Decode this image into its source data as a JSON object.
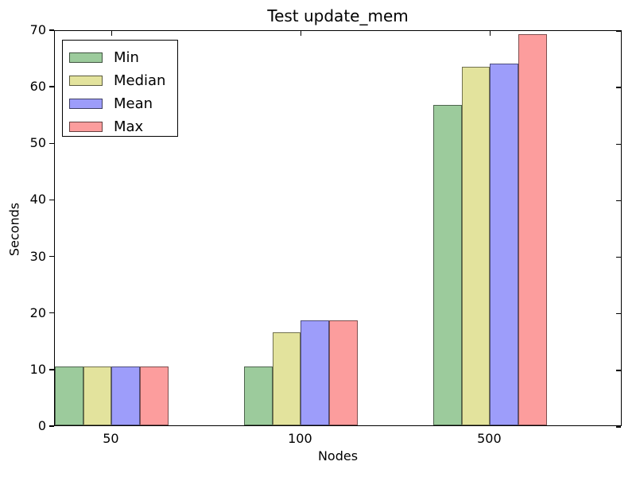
{
  "chart_data": {
    "type": "bar",
    "title": "Test update_mem",
    "xlabel": "Nodes",
    "ylabel": "Seconds",
    "categories": [
      "50",
      "100",
      "500"
    ],
    "series": [
      {
        "name": "Min",
        "color": "#9ccb9c",
        "values": [
          10.4,
          10.4,
          56.7
        ]
      },
      {
        "name": "Median",
        "color": "#e3e39d",
        "values": [
          10.4,
          16.4,
          63.4
        ]
      },
      {
        "name": "Mean",
        "color": "#9d9dfa",
        "values": [
          10.4,
          18.5,
          64.0
        ]
      },
      {
        "name": "Max",
        "color": "#fc9d9d",
        "values": [
          10.4,
          18.5,
          69.1
        ]
      }
    ],
    "ylim": [
      0,
      70
    ],
    "yticks": [
      0,
      10,
      20,
      30,
      40,
      50,
      60,
      70
    ],
    "legend_position": "upper left",
    "grid": false,
    "background_color": "#ffffff",
    "axis_color": "#000000"
  }
}
